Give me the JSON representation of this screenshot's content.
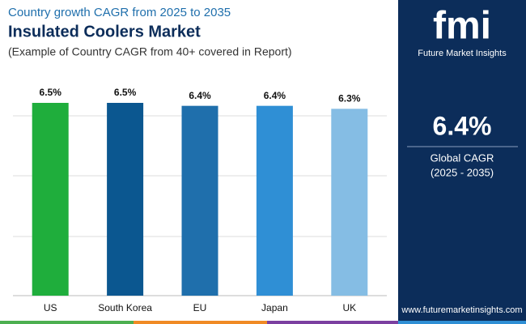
{
  "chart_data": {
    "type": "bar",
    "title": "Country growth CAGR from 2025 to 2035",
    "subtitle": "Insulated Coolers Market",
    "caption": "(Example of Country CAGR from 40+ covered in Report)",
    "categories": [
      "US",
      "South Korea",
      "EU",
      "Japan",
      "UK"
    ],
    "values": [
      6.5,
      6.5,
      6.4,
      6.4,
      6.3
    ],
    "value_labels": [
      "6.5%",
      "6.5%",
      "6.4%",
      "6.4%",
      "6.3%"
    ],
    "colors": [
      "#1fae3c",
      "#0b5790",
      "#1f6fac",
      "#2f8fd5",
      "#85bde4"
    ],
    "ylim": [
      0,
      6.5
    ]
  },
  "sidebar": {
    "logo": "fmi",
    "brand": "Future Market Insights",
    "stat": "6.4%",
    "stat_label": "Global CAGR",
    "period": "(2025 - 2035)",
    "url": "www.futuremarketinsights.com"
  }
}
